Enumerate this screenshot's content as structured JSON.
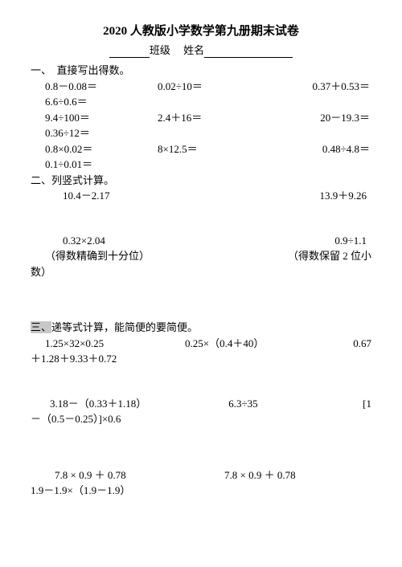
{
  "title": "2020 人教版小学数学第九册期末试卷",
  "subtitle": {
    "class_label": "班级",
    "name_label": "姓名"
  },
  "sec1": {
    "head": "一、　直接写出得数。",
    "rows": [
      [
        "0.8－0.08＝",
        "0.02÷10＝",
        "0.37＋0.53＝"
      ],
      [
        "6.6÷0.6＝",
        "",
        ""
      ],
      [
        "9.4÷100＝",
        "2.4＋16＝",
        "20－19.3＝"
      ],
      [
        "0.36÷12＝",
        "",
        ""
      ],
      [
        "0.8×0.02＝",
        "8×12.5＝",
        "0.48÷4.8＝"
      ],
      [
        "0.1÷0.01＝",
        "",
        ""
      ]
    ]
  },
  "sec2": {
    "head": "二、列竖式计算。",
    "r1": [
      "10.4－2.17",
      "13.9＋9.26"
    ],
    "r2": [
      "0.32×2.04",
      "0.9÷1.1"
    ],
    "note": [
      "（得数精确到十分位）",
      "（得数保留 2 位小"
    ],
    "note_cont": "数）"
  },
  "sec3": {
    "head_hl": "三、",
    "head_rest": "递等式计算，能简便的要简便。",
    "line1": [
      "1.25×32×0.25",
      "0.25×（0.4＋40）",
      "0.67"
    ],
    "line1_cont": "＋1.28＋9.33＋0.72",
    "line2": [
      "3.18－（0.33＋1.18）",
      "6.3÷35",
      "[1"
    ],
    "line2_cont": "－（0.5－0.25）]×0.6",
    "line3": [
      "7.8 × 0.9 ＋ 0.78",
      "7.8 × 0.9 ＋ 0.78"
    ],
    "line3_cont": "1.9－1.9×（1.9－1.9）"
  }
}
